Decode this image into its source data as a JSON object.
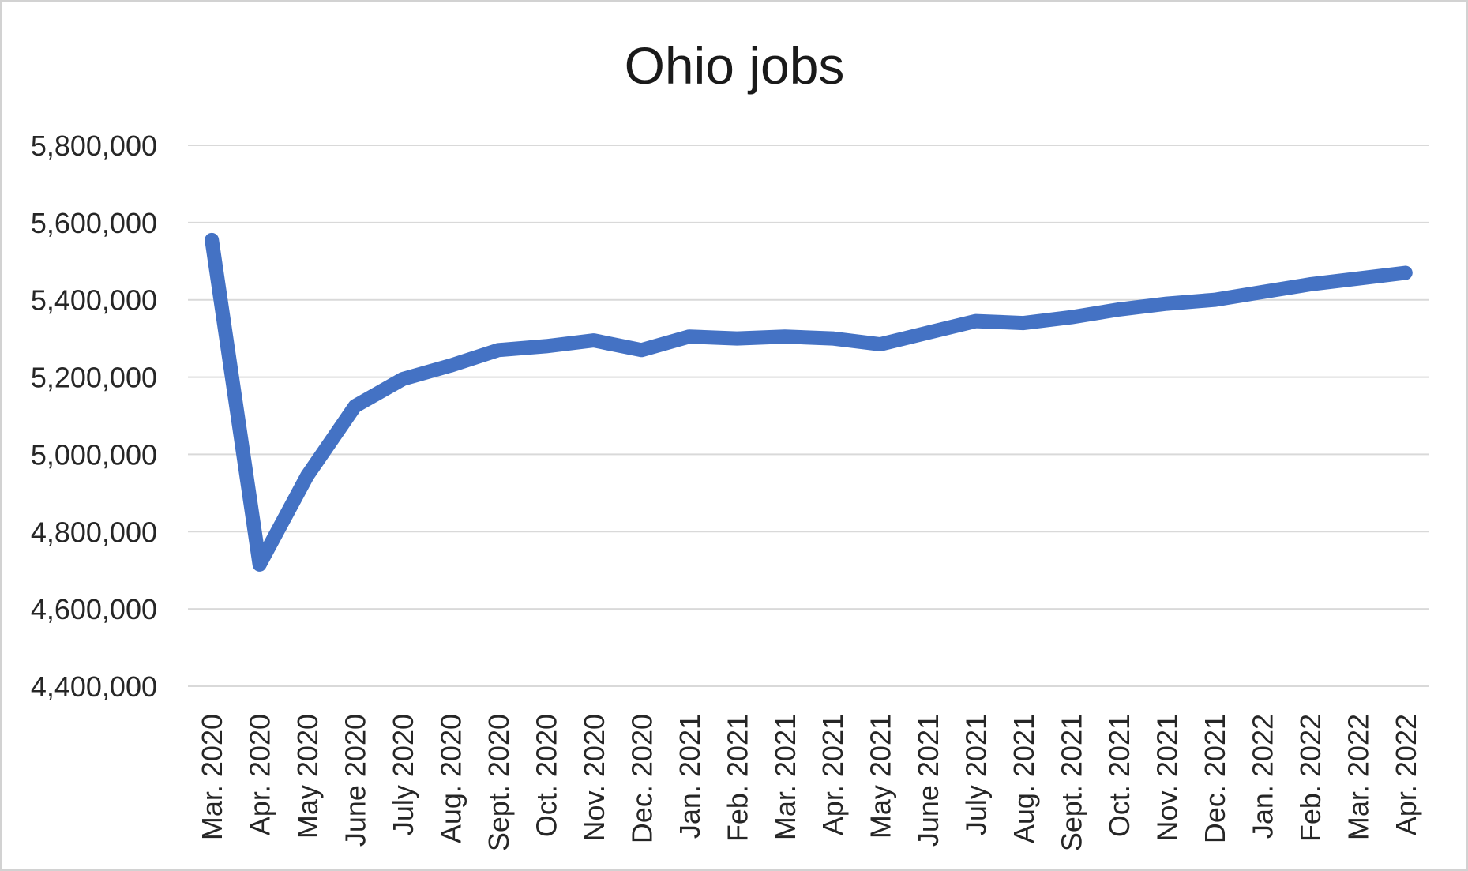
{
  "figure": {
    "type_label": "line chart"
  },
  "chart_data": {
    "type": "line",
    "title": "Ohio jobs",
    "xlabel": "",
    "ylabel": "",
    "categories": [
      "Mar. 2020",
      "Apr. 2020",
      "May 2020",
      "June 2020",
      "July 2020",
      "Aug. 2020",
      "Sept. 2020",
      "Oct. 2020",
      "Nov. 2020",
      "Dec. 2020",
      "Jan. 2021",
      "Feb. 2021",
      "Mar. 2021",
      "Apr. 2021",
      "May 2021",
      "June 2021",
      "July 2021",
      "Aug. 2021",
      "Sept. 2021",
      "Oct. 2021",
      "Nov. 2021",
      "Dec. 2021",
      "Jan. 2022",
      "Feb. 2022",
      "Mar. 2022",
      "Apr. 2022"
    ],
    "values": [
      5555000,
      4715000,
      4945000,
      5125000,
      5195000,
      5230000,
      5270000,
      5280000,
      5295000,
      5270000,
      5305000,
      5300000,
      5305000,
      5300000,
      5285000,
      5315000,
      5345000,
      5340000,
      5355000,
      5375000,
      5390000,
      5400000,
      5420000,
      5440000,
      5455000,
      5470000
    ],
    "ylim": [
      4400000,
      5800000
    ],
    "y_ticks": [
      4400000,
      4600000,
      4800000,
      5000000,
      5200000,
      5400000,
      5600000,
      5800000
    ],
    "y_tick_labels": [
      "4,400,000",
      "4,600,000",
      "4,800,000",
      "5,000,000",
      "5,200,000",
      "5,400,000",
      "5,600,000",
      "5,800,000"
    ],
    "grid": true,
    "legend": false,
    "x_labels_rotated_degrees": -90,
    "line_color": "#4472C4",
    "gridline_color": "#D9D9D9",
    "text_color": "#262626",
    "title_color": "#1A1A1A",
    "background_color": "#FFFFFF",
    "border_color": "#D2D2D2"
  }
}
